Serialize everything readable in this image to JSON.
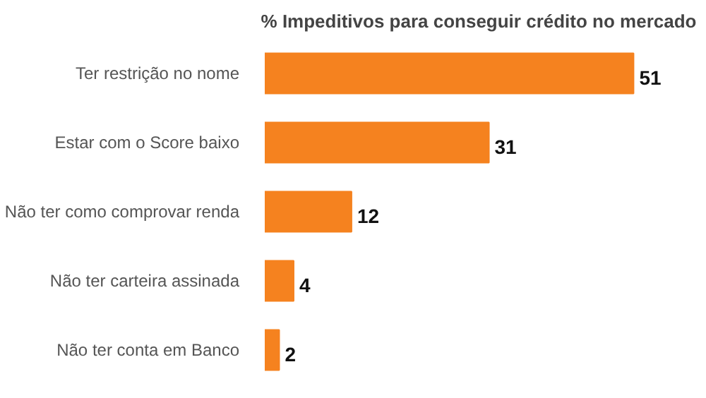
{
  "chart_data": {
    "type": "bar",
    "orientation": "horizontal",
    "title": "% Impeditivos para conseguir crédito no mercado",
    "categories": [
      "Ter restrição no nome",
      "Estar com o Score baixo",
      "Não ter como comprovar renda",
      "Não ter carteira assinada",
      "Não ter conta em Banco"
    ],
    "values": [
      51,
      31,
      12,
      4,
      2
    ],
    "color": "#f5821f",
    "data_labels": true
  }
}
